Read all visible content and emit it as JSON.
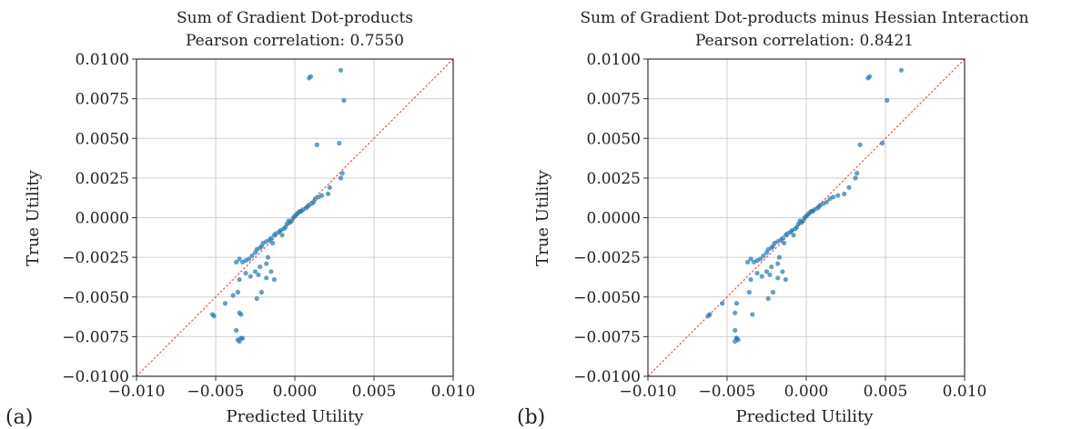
{
  "chart_data": [
    {
      "type": "scatter",
      "panel_tag": "(a)",
      "title": "Sum of Gradient Dot-products",
      "subtitle": "Pearson correlation: 0.7550",
      "xlabel": "Predicted Utility",
      "ylabel": "True Utility",
      "xlim": [
        -0.01,
        0.01
      ],
      "ylim": [
        -0.01,
        0.01
      ],
      "xticks": [
        "−0.010",
        "−0.005",
        "0.000",
        "0.005",
        "0.010"
      ],
      "yticks": [
        "0.0100",
        "0.0075",
        "0.0050",
        "0.0025",
        "0.0000",
        "−0.0025",
        "−0.0050",
        "−0.0075",
        "−0.0100"
      ],
      "grid": true,
      "reference_line": "y = x",
      "colors": {
        "points": "#1f77b4",
        "reference": "#ff4d4d"
      },
      "x": [
        0.0009,
        0.001,
        0.0029,
        0.0031,
        0.0014,
        0.0028,
        0.003,
        0.0029,
        0.0022,
        0.0021,
        0.0017,
        0.0015,
        0.0013,
        0.0012,
        0.0011,
        0.0009,
        0.0008,
        0.0007,
        0.0005,
        0.0004,
        0.0003,
        0.0002,
        0.0001,
        0.0,
        -0.0001,
        -0.0002,
        -0.0003,
        -0.0005,
        -0.0006,
        -0.0007,
        -0.0009,
        -0.001,
        -0.0012,
        -0.0013,
        -0.0015,
        -0.0016,
        -0.0018,
        -0.002,
        -0.0021,
        -0.0022,
        -0.0024,
        -0.0025,
        -0.0027,
        -0.0029,
        -0.0031,
        -0.0033,
        -0.0035,
        -0.0037,
        -0.0017,
        -0.0018,
        -0.0022,
        -0.0025,
        -0.0028,
        -0.0031,
        -0.0035,
        -0.0023,
        -0.0036,
        -0.0044,
        -0.0035,
        -0.0036,
        -0.0015,
        -0.0013,
        -0.0018,
        -0.0021,
        -0.0024,
        -0.0034,
        -0.0037,
        -0.0051,
        -0.0052,
        -0.0039,
        -0.0033,
        -0.0035,
        -0.0034,
        -0.0014,
        -0.0004,
        -0.0008
      ],
      "y": [
        0.0088,
        0.0089,
        0.0093,
        0.0074,
        0.0046,
        0.0047,
        0.0028,
        0.0025,
        0.0019,
        0.0015,
        0.0014,
        0.0013,
        0.0012,
        0.001,
        0.0009,
        0.0008,
        0.0007,
        0.0006,
        0.0005,
        0.0004,
        0.0004,
        0.0003,
        0.0002,
        0.0001,
        0.0,
        -0.0002,
        -0.0003,
        -0.0004,
        -0.0006,
        -0.0007,
        -0.0008,
        -0.0009,
        -0.001,
        -0.0011,
        -0.0013,
        -0.0014,
        -0.0015,
        -0.0016,
        -0.0018,
        -0.0019,
        -0.002,
        -0.0022,
        -0.0024,
        -0.0026,
        -0.0027,
        -0.0028,
        -0.0026,
        -0.0028,
        -0.0025,
        -0.0029,
        -0.0031,
        -0.0034,
        -0.0037,
        -0.0035,
        -0.0039,
        -0.0036,
        -0.0047,
        -0.0054,
        -0.006,
        -0.0077,
        -0.0034,
        -0.0039,
        -0.0038,
        -0.0047,
        -0.0051,
        -0.0061,
        -0.0071,
        -0.0062,
        -0.0061,
        -0.0049,
        -0.0076,
        -0.0078,
        -0.0076,
        -0.0016,
        -0.0002,
        -0.0011
      ]
    },
    {
      "type": "scatter",
      "panel_tag": "(b)",
      "title": "Sum of Gradient Dot-products minus Hessian Interaction",
      "subtitle": "Pearson correlation: 0.8421",
      "xlabel": "Predicted Utility",
      "ylabel": "True Utility",
      "xlim": [
        -0.01,
        0.01
      ],
      "ylim": [
        -0.01,
        0.01
      ],
      "xticks": [
        "−0.010",
        "−0.005",
        "0.000",
        "0.005",
        "0.010"
      ],
      "yticks": [
        "0.0100",
        "0.0075",
        "0.0050",
        "0.0025",
        "0.0000",
        "−0.0025",
        "−0.0050",
        "−0.0075",
        "−0.0100"
      ],
      "grid": true,
      "reference_line": "y = x",
      "colors": {
        "points": "#1f77b4",
        "reference": "#ff4d4d"
      },
      "x": [
        0.0039,
        0.004,
        0.006,
        0.0051,
        0.0034,
        0.0048,
        0.0032,
        0.0031,
        0.0027,
        0.0024,
        0.002,
        0.0017,
        0.0015,
        0.0013,
        0.0011,
        0.0009,
        0.0008,
        0.0007,
        0.0005,
        0.0004,
        0.0003,
        0.0002,
        0.0001,
        0.0,
        -0.0001,
        -0.0002,
        -0.0003,
        -0.0005,
        -0.0006,
        -0.0007,
        -0.0009,
        -0.001,
        -0.0012,
        -0.0013,
        -0.0015,
        -0.0016,
        -0.0018,
        -0.002,
        -0.0021,
        -0.0022,
        -0.0024,
        -0.0025,
        -0.0027,
        -0.0029,
        -0.0031,
        -0.0033,
        -0.0035,
        -0.0037,
        -0.0017,
        -0.0018,
        -0.0022,
        -0.0025,
        -0.0028,
        -0.0031,
        -0.0035,
        -0.0023,
        -0.0036,
        -0.0044,
        -0.0045,
        -0.0043,
        -0.0015,
        -0.0013,
        -0.0018,
        -0.0021,
        -0.0024,
        -0.0034,
        -0.0045,
        -0.0062,
        -0.0061,
        -0.0053,
        -0.0044,
        -0.0045,
        -0.0044,
        -0.0014,
        -0.0004,
        -0.0008
      ],
      "y": [
        0.0088,
        0.0089,
        0.0093,
        0.0074,
        0.0046,
        0.0047,
        0.0028,
        0.0025,
        0.0019,
        0.0015,
        0.0014,
        0.0013,
        0.0012,
        0.001,
        0.0009,
        0.0008,
        0.0007,
        0.0006,
        0.0005,
        0.0004,
        0.0004,
        0.0003,
        0.0002,
        0.0001,
        0.0,
        -0.0002,
        -0.0003,
        -0.0004,
        -0.0006,
        -0.0007,
        -0.0008,
        -0.0009,
        -0.001,
        -0.0011,
        -0.0013,
        -0.0014,
        -0.0015,
        -0.0016,
        -0.0018,
        -0.0019,
        -0.002,
        -0.0022,
        -0.0024,
        -0.0026,
        -0.0027,
        -0.0028,
        -0.0026,
        -0.0028,
        -0.0025,
        -0.0029,
        -0.0031,
        -0.0034,
        -0.0037,
        -0.0035,
        -0.0039,
        -0.0036,
        -0.0047,
        -0.0054,
        -0.006,
        -0.0077,
        -0.0034,
        -0.0039,
        -0.0038,
        -0.0047,
        -0.0051,
        -0.0061,
        -0.0071,
        -0.0062,
        -0.0061,
        -0.0054,
        -0.0076,
        -0.0078,
        -0.0076,
        -0.0016,
        -0.0002,
        -0.0011
      ]
    }
  ]
}
